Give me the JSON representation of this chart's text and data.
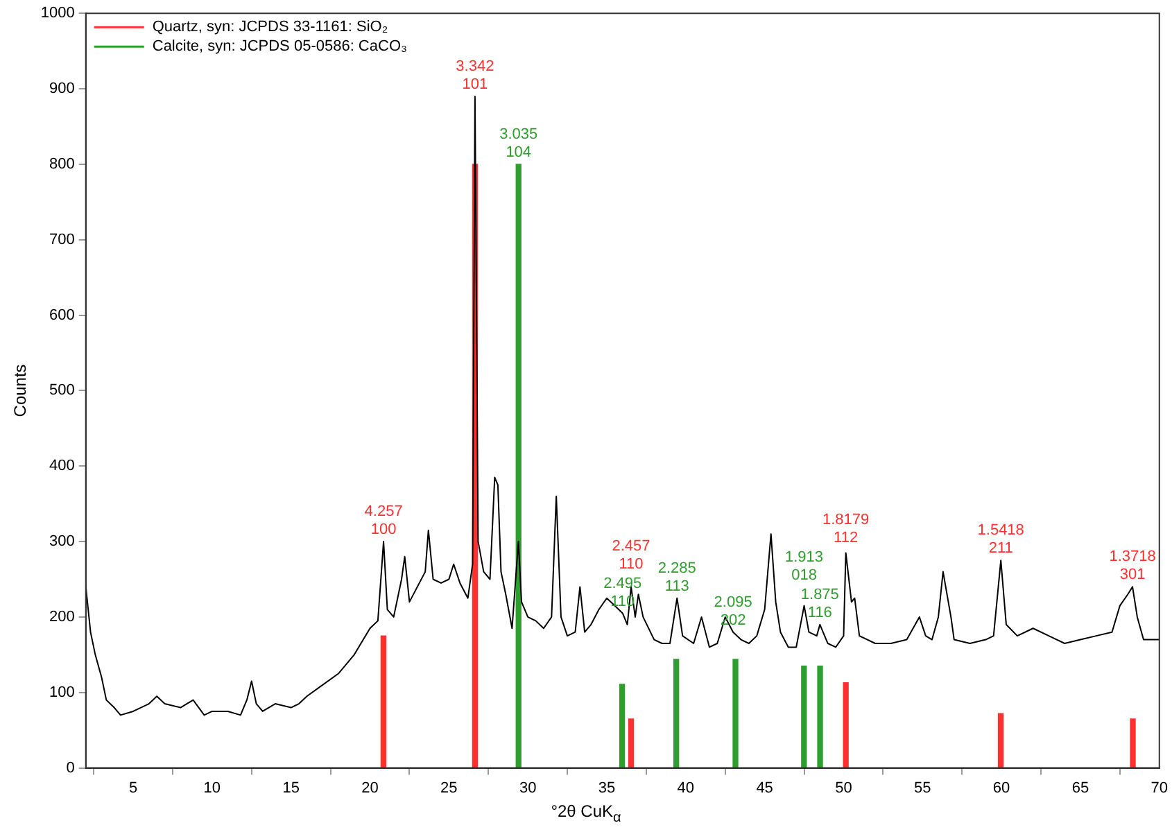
{
  "chart_data": {
    "type": "line",
    "xlabel": "°2θ CuK$_{α}$",
    "ylabel": "Counts",
    "xlim": [
      2,
      70
    ],
    "ylim": [
      0,
      1000
    ],
    "xticks": [
      5,
      10,
      15,
      20,
      25,
      30,
      35,
      40,
      45,
      50,
      55,
      60,
      65,
      70
    ],
    "yticks": [
      0,
      100,
      200,
      300,
      400,
      500,
      600,
      700,
      800,
      900,
      1000
    ],
    "grid": false,
    "legend": "top left",
    "marker": "none",
    "annotations": [
      {
        "text": "4.257\n100",
        "x": 20.86,
        "y": 300
      },
      {
        "text": "3.342\n101",
        "x": 26.65,
        "y": 890
      },
      {
        "text": "2.457\n110",
        "x": 36.54,
        "y": 240
      },
      {
        "text": "1.8179\n112",
        "x": 50.14,
        "y": 285
      },
      {
        "text": "1.5418\n211",
        "x": 59.96,
        "y": 275
      },
      {
        "text": "1.3718\n301",
        "x": 68.3,
        "y": 240
      },
      {
        "text": "3.035\n104",
        "x": 29.41,
        "y": 800
      },
      {
        "text": "2.495\n110",
        "x": 36,
        "y": 205
      },
      {
        "text": "2.285\n113",
        "x": 39.45,
        "y": 225
      },
      {
        "text": "2.095\n202",
        "x": 43,
        "y": 180
      },
      {
        "text": "1.913\n018",
        "x": 47.5,
        "y": 215
      },
      {
        "text": "1.875\n116",
        "x": 48.5,
        "y": 190
      }
    ],
    "series": [
      {
        "color": "#000000",
        "x": [
          2.0,
          2.3,
          2.6,
          3.0,
          3.3,
          3.8,
          4.2,
          5,
          6,
          6.5,
          7,
          8,
          8.8,
          9.5,
          10,
          11,
          11.8,
          12.2,
          12.5,
          12.8,
          13.2,
          14,
          15,
          15.5,
          16,
          17,
          18,
          19,
          20,
          20.5,
          20.86,
          21.1,
          21.5,
          22,
          22.2,
          22.5,
          23,
          23.5,
          23.7,
          24,
          24.5,
          25,
          25.3,
          25.7,
          26.2,
          26.5,
          26.65,
          26.85,
          27.2,
          27.6,
          27.9,
          28.1,
          28.3,
          28.6,
          29,
          29.4,
          29.6,
          30,
          30.5,
          31,
          31.5,
          31.8,
          32.1,
          32.5,
          33,
          33.3,
          33.6,
          34,
          34.5,
          35,
          35.5,
          36,
          36.3,
          36.54,
          36.8,
          37,
          37.3,
          38,
          38.5,
          39,
          39.45,
          39.8,
          40.5,
          41,
          41.5,
          42,
          42.5,
          43,
          43.5,
          44,
          44.5,
          45,
          45.4,
          45.7,
          46,
          46.5,
          47,
          47.5,
          47.8,
          48.3,
          48.5,
          49,
          49.5,
          50,
          50.14,
          50.5,
          50.7,
          51,
          52,
          53,
          54,
          54.8,
          55.2,
          55.6,
          56,
          56.3,
          56.8,
          57,
          58,
          59,
          59.5,
          59.96,
          60.3,
          61,
          62,
          63,
          64,
          65,
          66,
          67,
          67.5,
          68,
          68.3,
          68.6,
          69,
          70
        ],
        "values": [
          240,
          180,
          150,
          120,
          90,
          80,
          70,
          75,
          85,
          95,
          85,
          80,
          90,
          70,
          75,
          75,
          70,
          90,
          115,
          85,
          75,
          85,
          80,
          85,
          95,
          110,
          125,
          150,
          185,
          195,
          300,
          210,
          200,
          250,
          280,
          220,
          240,
          260,
          315,
          250,
          245,
          250,
          270,
          245,
          225,
          270,
          890,
          300,
          260,
          250,
          385,
          375,
          260,
          230,
          185,
          300,
          220,
          200,
          195,
          185,
          200,
          360,
          200,
          175,
          180,
          240,
          180,
          190,
          210,
          225,
          215,
          205,
          190,
          240,
          200,
          230,
          200,
          170,
          165,
          165,
          225,
          175,
          165,
          200,
          160,
          165,
          200,
          180,
          170,
          165,
          175,
          210,
          310,
          220,
          180,
          160,
          160,
          215,
          180,
          175,
          190,
          165,
          160,
          175,
          285,
          220,
          225,
          175,
          165,
          165,
          170,
          200,
          175,
          170,
          200,
          260,
          200,
          170,
          165,
          170,
          175,
          275,
          190,
          175,
          185,
          175,
          165,
          170,
          175,
          180,
          215,
          230,
          240,
          200,
          170,
          170
        ]
      },
      {
        "name": "Quartz, syn: JCPDS 33-1161: SiO₂",
        "type": "bar",
        "color": "#ff3030",
        "x": [
          20.85,
          26.65,
          36.54,
          50.14,
          59.95,
          68.32
        ],
        "values": [
          175,
          800,
          65,
          113,
          72,
          65
        ]
      },
      {
        "name": "Calcite, syn: JCPDS 05-0586: CaCO₃",
        "type": "bar",
        "color": "#2e9e2e",
        "x": [
          29.41,
          35.97,
          39.4,
          43.15,
          47.49,
          48.51
        ],
        "values": [
          800,
          111,
          144,
          144,
          135,
          135
        ]
      }
    ]
  }
}
